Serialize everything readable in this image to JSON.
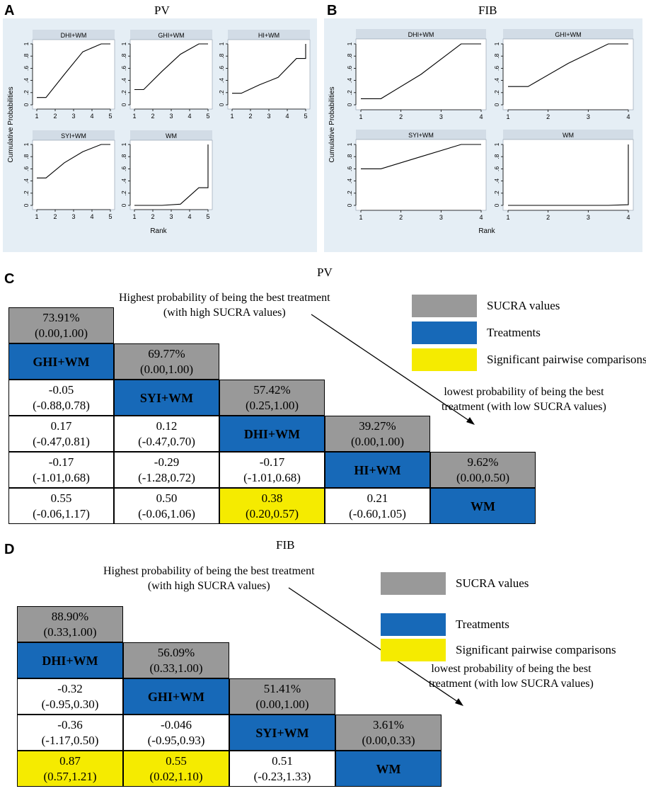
{
  "panels": {
    "A": {
      "letter": "A",
      "title": "PV"
    },
    "B": {
      "letter": "B",
      "title": "FIB"
    },
    "C": {
      "letter": "C",
      "title": "PV"
    },
    "D": {
      "letter": "D",
      "title": "FIB"
    }
  },
  "chart_data": [
    {
      "type": "line",
      "panel": "A",
      "title": "PV",
      "xlabel": "Rank",
      "ylabel": "Cumulative Probabilities",
      "xlim": [
        1,
        5
      ],
      "ylim": [
        0,
        1
      ],
      "xticks": [
        1,
        2,
        3,
        4,
        5
      ],
      "yticks": [
        0,
        0.2,
        0.4,
        0.6,
        0.8,
        1
      ],
      "ytick_labels": [
        "0",
        ".2",
        ".4",
        ".6",
        ".8",
        "1"
      ],
      "series": [
        {
          "name": "DHI+WM",
          "x": [
            1,
            1.5,
            2.5,
            3.5,
            4.5,
            5
          ],
          "y": [
            0.12,
            0.12,
            0.5,
            0.87,
            1.0,
            1.0
          ]
        },
        {
          "name": "GHI+WM",
          "x": [
            1,
            1.5,
            2.5,
            3.5,
            4.5,
            5
          ],
          "y": [
            0.25,
            0.25,
            0.55,
            0.83,
            1.0,
            1.0
          ]
        },
        {
          "name": "HI+WM",
          "x": [
            1,
            1.5,
            2.5,
            3.5,
            4.5,
            5,
            5
          ],
          "y": [
            0.19,
            0.19,
            0.33,
            0.45,
            0.76,
            0.76,
            1.0
          ]
        },
        {
          "name": "SYI+WM",
          "x": [
            1,
            1.5,
            2.5,
            3.5,
            4.5,
            5
          ],
          "y": [
            0.45,
            0.45,
            0.7,
            0.88,
            1.0,
            1.0
          ]
        },
        {
          "name": "WM",
          "x": [
            1,
            1.5,
            2.5,
            3.5,
            4.5,
            5,
            5
          ],
          "y": [
            0.0,
            0.0,
            0.0,
            0.02,
            0.29,
            0.29,
            1.0
          ]
        }
      ]
    },
    {
      "type": "line",
      "panel": "B",
      "title": "FIB",
      "xlabel": "Rank",
      "ylabel": "Cumulative Probabilities",
      "xlim": [
        1,
        4
      ],
      "ylim": [
        0,
        1
      ],
      "xticks": [
        1,
        2,
        3,
        4
      ],
      "yticks": [
        0,
        0.2,
        0.4,
        0.6,
        0.8,
        1
      ],
      "ytick_labels": [
        "0",
        ".2",
        ".4",
        ".6",
        ".8",
        "1"
      ],
      "series": [
        {
          "name": "DHI+WM",
          "x": [
            1,
            1.5,
            2.5,
            3.5,
            4
          ],
          "y": [
            0.1,
            0.1,
            0.5,
            1.0,
            1.0
          ]
        },
        {
          "name": "GHI+WM",
          "x": [
            1,
            1.5,
            2.5,
            3.5,
            4
          ],
          "y": [
            0.3,
            0.3,
            0.68,
            1.0,
            1.0
          ]
        },
        {
          "name": "SYI+WM",
          "x": [
            1,
            1.5,
            2.5,
            3.5,
            4
          ],
          "y": [
            0.6,
            0.6,
            0.8,
            1.0,
            1.0
          ]
        },
        {
          "name": "WM",
          "x": [
            1,
            1.5,
            2.5,
            3.5,
            4,
            4
          ],
          "y": [
            0.0,
            0.0,
            0.0,
            0.0,
            0.01,
            1.0
          ]
        }
      ]
    },
    {
      "type": "table",
      "panel": "C",
      "title": "PV",
      "treatments": [
        "GHI+WM",
        "SYI+WM",
        "DHI+WM",
        "HI+WM",
        "WM"
      ],
      "sucra": [
        {
          "value": "73.91%",
          "ci": "(0.00,1.00)"
        },
        {
          "value": "69.77%",
          "ci": "(0.00,1.00)"
        },
        {
          "value": "57.42%",
          "ci": "(0.25,1.00)"
        },
        {
          "value": "39.27%",
          "ci": "(0.00,1.00)"
        },
        {
          "value": "9.62%",
          "ci": "(0.00,0.50)"
        }
      ],
      "comparisons": [
        {
          "row": 2,
          "col": 0,
          "value": "-0.05",
          "ci": "(-0.88,0.78)",
          "significant": false
        },
        {
          "row": 3,
          "col": 0,
          "value": "0.17",
          "ci": "(-0.47,0.81)",
          "significant": false
        },
        {
          "row": 3,
          "col": 1,
          "value": "0.12",
          "ci": "(-0.47,0.70)",
          "significant": false
        },
        {
          "row": 4,
          "col": 0,
          "value": "-0.17",
          "ci": "(-1.01,0.68)",
          "significant": false
        },
        {
          "row": 4,
          "col": 1,
          "value": "-0.29",
          "ci": "(-1.28,0.72)",
          "significant": false
        },
        {
          "row": 4,
          "col": 2,
          "value": "-0.17",
          "ci": "(-1.01,0.68)",
          "significant": false
        },
        {
          "row": 5,
          "col": 0,
          "value": "0.55",
          "ci": "(-0.06,1.17)",
          "significant": false
        },
        {
          "row": 5,
          "col": 1,
          "value": "0.50",
          "ci": "(-0.06,1.06)",
          "significant": false
        },
        {
          "row": 5,
          "col": 2,
          "value": "0.38",
          "ci": "(0.20,0.57)",
          "significant": true
        },
        {
          "row": 5,
          "col": 3,
          "value": "0.21",
          "ci": "(-0.60,1.05)",
          "significant": false
        }
      ]
    },
    {
      "type": "table",
      "panel": "D",
      "title": "FIB",
      "treatments": [
        "DHI+WM",
        "GHI+WM",
        "SYI+WM",
        "WM"
      ],
      "sucra": [
        {
          "value": "88.90%",
          "ci": "(0.33,1.00)"
        },
        {
          "value": "56.09%",
          "ci": "(0.33,1.00)"
        },
        {
          "value": "51.41%",
          "ci": "(0.00,1.00)"
        },
        {
          "value": "3.61%",
          "ci": "(0.00,0.33)"
        }
      ],
      "comparisons": [
        {
          "row": 2,
          "col": 0,
          "value": "-0.32",
          "ci": "(-0.95,0.30)",
          "significant": false
        },
        {
          "row": 3,
          "col": 0,
          "value": "-0.36",
          "ci": "(-1.17,0.50)",
          "significant": false
        },
        {
          "row": 3,
          "col": 1,
          "value": "-0.046",
          "ci": "(-0.95,0.93)",
          "significant": false
        },
        {
          "row": 4,
          "col": 0,
          "value": "0.87",
          "ci": "(0.57,1.21)",
          "significant": true
        },
        {
          "row": 4,
          "col": 1,
          "value": "0.55",
          "ci": "(0.02,1.10)",
          "significant": true
        },
        {
          "row": 4,
          "col": 2,
          "value": "0.51",
          "ci": "(-0.23,1.33)",
          "significant": false
        }
      ]
    }
  ],
  "legend": {
    "sucra_label": "SUCRA values",
    "treatments_label": "Treatments",
    "significant_label": "Significant pairwise comparisons"
  },
  "annotations": {
    "highest_line1": "Highest probability of being the best treatment",
    "highest_line2": "(with high SUCRA values)",
    "lowest_line1": "lowest probability of being the best",
    "lowest_line2": "treatment (with low SUCRA values)",
    "lowest_line2_d1": "best",
    "lowest_line2_d2": "treatment (with low SUCRA values)"
  },
  "colors": {
    "sucra": "#999999",
    "treatment": "#1769b8",
    "significant": "#f5eb00",
    "plot_panel_bg": "#e5eef5"
  }
}
